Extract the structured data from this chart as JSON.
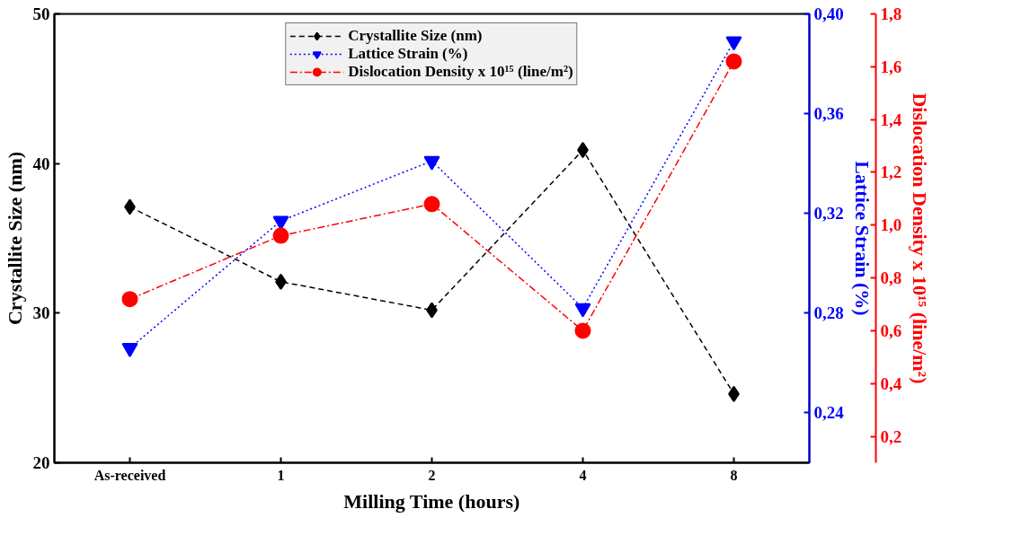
{
  "chart_data": {
    "type": "line",
    "xlabel": "Milling Time (hours)",
    "ylabel": "Crystallite Size (nm)",
    "y2label": "Lattice Strain (%)",
    "y3label": "Dislocation Density x 10¹⁵ (line/m²)",
    "categories": [
      "As-received",
      "1",
      "2",
      "4",
      "8"
    ],
    "series": [
      {
        "name": "Crystallite Size (nm)",
        "color": "#000000",
        "marker": "diamond",
        "line_style": "dashed",
        "values": [
          37.1,
          32.1,
          30.2,
          40.9,
          24.6
        ]
      },
      {
        "name": "Lattice Strain (%)",
        "color": "#0000ff",
        "marker": "triangle",
        "line_style": "dotted",
        "axis": "y2",
        "values": [
          0.266,
          0.317,
          0.341,
          0.282,
          0.389
        ]
      },
      {
        "name": "Dislocation Density x 10¹⁵ (line/m²)",
        "color": "#ff0000",
        "marker": "circle",
        "line_style": "dashdot",
        "axis": "y3",
        "values": [
          0.72,
          0.96,
          1.08,
          0.6,
          1.62
        ]
      }
    ],
    "ylim": [
      20,
      50
    ],
    "yticks": [
      20,
      30,
      40,
      50
    ],
    "y2lim": [
      0.22,
      0.4
    ],
    "y2ticks": [
      {
        "value": 0.24,
        "label": "0,24"
      },
      {
        "value": 0.28,
        "label": "0,28"
      },
      {
        "value": 0.32,
        "label": "0,32"
      },
      {
        "value": 0.36,
        "label": "0,36"
      },
      {
        "value": 0.4,
        "label": "0,40"
      }
    ],
    "y3lim": [
      0.1,
      1.8
    ],
    "y3ticks": [
      {
        "value": 0.2,
        "label": "0,2"
      },
      {
        "value": 0.4,
        "label": "0,4"
      },
      {
        "value": 0.6,
        "label": "0,6"
      },
      {
        "value": 0.8,
        "label": "0,8"
      },
      {
        "value": 1.0,
        "label": "1,0"
      },
      {
        "value": 1.2,
        "label": "1,2"
      },
      {
        "value": 1.4,
        "label": "1,4"
      },
      {
        "value": 1.6,
        "label": "1,6"
      },
      {
        "value": 1.8,
        "label": "1,8"
      }
    ],
    "grid": false,
    "legend": "top"
  }
}
